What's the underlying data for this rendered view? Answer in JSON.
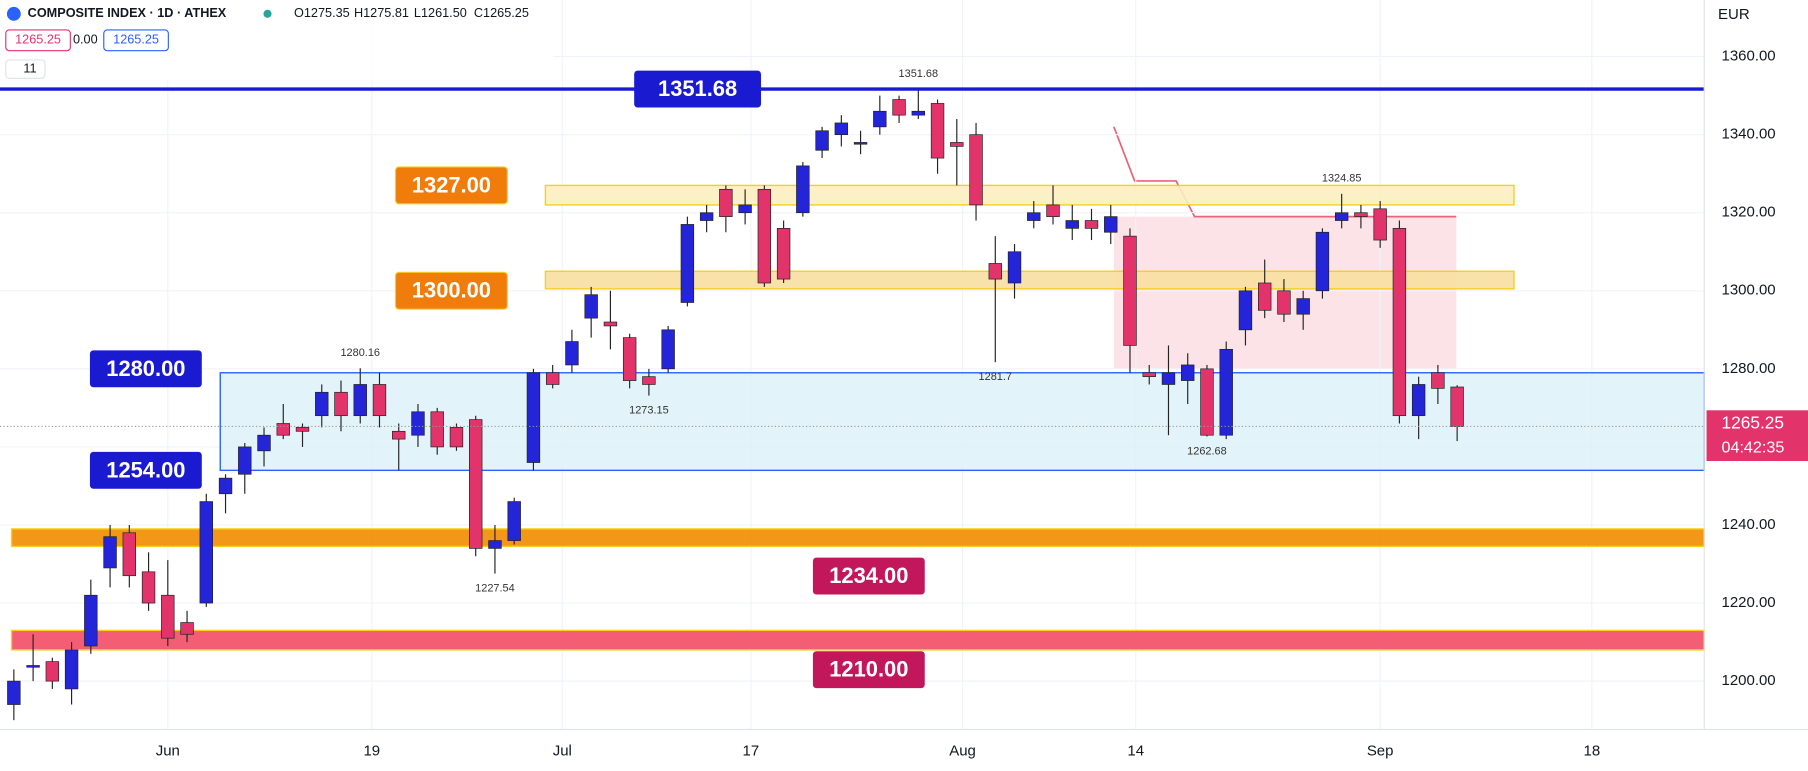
{
  "header": {
    "title": "COMPOSITE INDEX · 1D · ATHEX",
    "open": "O1275.35",
    "high": "H1275.81",
    "low": "L1261.50",
    "close": "C1265.25",
    "bid": "1265.25",
    "spread": "0.00",
    "ask": "1265.25",
    "indicators": "11"
  },
  "chart_data": {
    "type": "candlestick",
    "currency": "EUR",
    "countdown": "04:42:35",
    "up_color": "#2424d8",
    "down_color": "#e2346b",
    "open": [
      1194,
      1204,
      1205,
      1198,
      1209,
      1229,
      1238,
      1228,
      1222,
      1215,
      1220,
      1248,
      1253,
      1259,
      1266,
      1265,
      1268,
      1274,
      1268,
      1276,
      1264,
      1263,
      1269,
      1265,
      1267,
      1234,
      1236,
      1256,
      1279,
      1281,
      1293,
      1292,
      1288,
      1278,
      1280,
      1297,
      1318,
      1326,
      1320,
      1326,
      1316,
      1320,
      1336,
      1340,
      1338,
      1342,
      1349,
      1345,
      1348,
      1338,
      1340,
      1307,
      1302,
      1318,
      1322,
      1316,
      1318,
      1315,
      1314,
      1279,
      1276,
      1277,
      1280,
      1263,
      1290,
      1302,
      1300,
      1294,
      1300,
      1318,
      1320,
      1321,
      1316,
      1268,
      1279,
      1275.35
    ],
    "high": [
      1203,
      1212,
      1206,
      1210,
      1226,
      1240,
      1240,
      1233,
      1231,
      1218,
      1248,
      1253,
      1261,
      1265,
      1271,
      1266,
      1276,
      1277,
      1280.16,
      1279,
      1266,
      1271,
      1270,
      1266,
      1268,
      1240,
      1247,
      1280,
      1281,
      1290,
      1301,
      1300,
      1289,
      1280,
      1291,
      1319,
      1322,
      1327,
      1326,
      1327,
      1318,
      1333,
      1342,
      1345,
      1341,
      1350,
      1350,
      1351.68,
      1349,
      1344,
      1343,
      1314,
      1312,
      1323,
      1327,
      1322,
      1321,
      1322,
      1316,
      1281,
      1286,
      1284,
      1281,
      1287,
      1301,
      1308,
      1303,
      1300,
      1316,
      1324.85,
      1322,
      1323,
      1318,
      1278,
      1281,
      1275.81
    ],
    "low": [
      1190,
      1200,
      1198,
      1194,
      1207,
      1224,
      1224,
      1218,
      1209,
      1210,
      1219,
      1243,
      1248,
      1255,
      1262,
      1260,
      1265,
      1264,
      1266,
      1265,
      1254,
      1260,
      1258,
      1259,
      1232,
      1227.54,
      1235,
      1254,
      1275,
      1279,
      1288,
      1285,
      1275,
      1273.15,
      1279,
      1296,
      1315,
      1315,
      1317,
      1301,
      1302,
      1319,
      1334,
      1337,
      1335,
      1340,
      1343,
      1344,
      1330,
      1327,
      1318,
      1281.7,
      1298,
      1316,
      1317,
      1313,
      1313,
      1312,
      1279,
      1276,
      1263,
      1271,
      1262.68,
      1262,
      1286,
      1293,
      1292,
      1290,
      1298,
      1316,
      1316,
      1311,
      1266,
      1262,
      1271,
      1261.5
    ],
    "close": [
      1200,
      1204,
      1200,
      1208,
      1222,
      1237,
      1227,
      1220,
      1211,
      1212,
      1246,
      1252,
      1260,
      1263,
      1263,
      1264,
      1274,
      1268,
      1276,
      1268,
      1262,
      1269,
      1260,
      1260,
      1234,
      1236,
      1246,
      1279,
      1276,
      1287,
      1299,
      1291,
      1277,
      1276,
      1290,
      1317,
      1320,
      1319,
      1322,
      1302,
      1303,
      1332,
      1341,
      1343,
      1338,
      1346,
      1345,
      1346,
      1334,
      1337,
      1322,
      1303,
      1310,
      1320,
      1319,
      1318,
      1316,
      1319,
      1286,
      1278,
      1279,
      1281,
      1263,
      1285,
      1300,
      1295,
      1294,
      1298,
      1315,
      1320,
      1319,
      1313,
      1268,
      1276,
      1275,
      1265.25
    ],
    "xlim": [
      -0.72,
      87.84
    ],
    "xticks": [
      {
        "value": 8,
        "label": "Jun"
      },
      {
        "value": 18.6,
        "label": "19"
      },
      {
        "value": 28.5,
        "label": "Jul"
      },
      {
        "value": 38.3,
        "label": "17"
      },
      {
        "value": 49.3,
        "label": "Aug"
      },
      {
        "value": 58.3,
        "label": "14"
      },
      {
        "value": 71,
        "label": "Sep"
      },
      {
        "value": 82,
        "label": "18"
      }
    ],
    "ylim": [
      1187.6,
      1374.5
    ],
    "yticks": [
      {
        "value": 1200,
        "label": "1200.00"
      },
      {
        "value": 1220,
        "label": "1220.00"
      },
      {
        "value": 1240,
        "label": "1240.00"
      },
      {
        "value": 1260,
        "label": "1260.00"
      },
      {
        "value": 1280,
        "label": "1280.00"
      },
      {
        "value": 1300,
        "label": "1300.00"
      },
      {
        "value": 1320,
        "label": "1320.00"
      },
      {
        "value": 1340,
        "label": "1340.00"
      },
      {
        "value": 1360,
        "label": "1360.00"
      }
    ],
    "levels": [
      {
        "value": 1351.68,
        "label": "1351.68",
        "color": "#1a1ad0"
      },
      {
        "value": 1327,
        "label": "1327.00",
        "color": "#f07c0c"
      },
      {
        "value": 1300,
        "label": "1300.00",
        "color": "#f07c0c"
      },
      {
        "value": 1280,
        "label": "1280.00",
        "color": "#1a1ad0"
      },
      {
        "value": 1254,
        "label": "1254.00",
        "color": "#1a1ad0"
      },
      {
        "value": 1234,
        "label": "1234.00",
        "color": "#c2185b"
      },
      {
        "value": 1210,
        "label": "1210.00",
        "color": "#c2185b"
      }
    ],
    "zones": [
      {
        "from": 1322,
        "to": 1327,
        "color": "#fbeec0"
      },
      {
        "from": 1300.5,
        "to": 1305,
        "color": "#f8dfa0"
      },
      {
        "from": 1254,
        "to": 1279,
        "color": "#dbf1f8"
      },
      {
        "from": 1234.5,
        "to": 1239,
        "color": "#f28c00"
      },
      {
        "from": 1208,
        "to": 1213,
        "color": "#f24d66"
      }
    ],
    "annotations": [
      1351.68,
      1280.16,
      1273.15,
      1227.54,
      1281.7,
      1262.68,
      1324.85
    ]
  }
}
